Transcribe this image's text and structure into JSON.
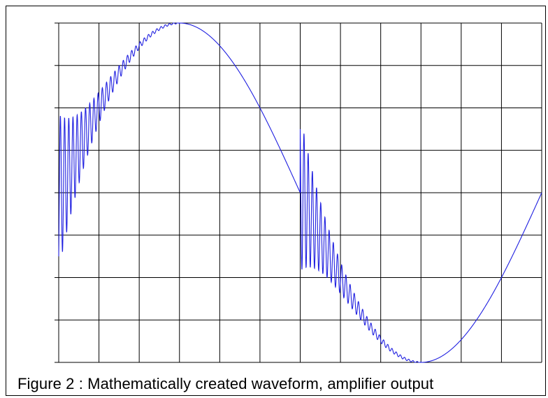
{
  "caption": "Figure 2 : Mathematically created waveform, amplifier output",
  "colors": {
    "trace": "#1f1fe0",
    "grid": "#000000",
    "background": "#ffffff"
  },
  "chart_data": {
    "type": "line",
    "title": "",
    "xlabel": "",
    "ylabel": "",
    "grid": true,
    "xlim": [
      0,
      12
    ],
    "ylim": [
      -1,
      1
    ],
    "x_divisions": 12,
    "y_divisions": 8,
    "series": [
      {
        "description_of_signal": "sine wave of one period with damped ringing after each step discontinuity",
        "base": {
          "amplitude": 1.0,
          "period_divisions": 12,
          "phase_start": 0
        },
        "ringing_events": [
          {
            "start_x": 0.0,
            "reset_value": -0.75,
            "initial_amplitude": 0.45,
            "frequency_per_division": 9.6,
            "decay_per_division": 1.6,
            "duration_divisions": 3.0
          },
          {
            "start_x": 6.0,
            "reset_value": 0.75,
            "initial_amplitude": 0.45,
            "frequency_per_division": 9.6,
            "decay_per_division": 1.6,
            "duration_divisions": 3.0
          }
        ]
      }
    ]
  }
}
